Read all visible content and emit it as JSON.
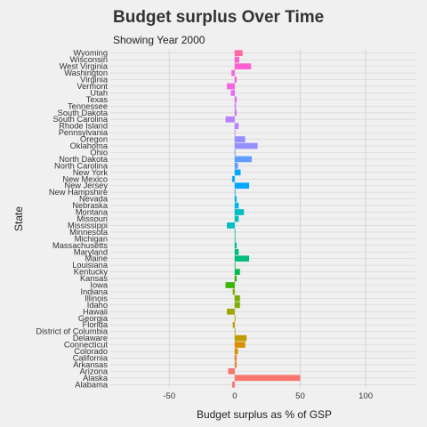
{
  "chart_data": {
    "type": "bar",
    "orientation": "horizontal",
    "title": "Budget surplus Over Time",
    "subtitle": "Showing Year 2000",
    "xlabel": "Budget surplus as % of GSP",
    "ylabel": "State",
    "xlim": [
      -95,
      138
    ],
    "xticks": [
      -50,
      0,
      50,
      100
    ],
    "xtick_labels": [
      "-50",
      "0",
      "50",
      "100"
    ],
    "grid": true,
    "legend": "none",
    "categories": [
      "Alabama",
      "Alaska",
      "Arizona",
      "Arkansas",
      "California",
      "Colorado",
      "Connecticut",
      "Delaware",
      "District of Columbia",
      "Florida",
      "Georgia",
      "Hawaii",
      "Idaho",
      "Illinois",
      "Indiana",
      "Iowa",
      "Kansas",
      "Kentucky",
      "Louisiana",
      "Maine",
      "Maryland",
      "Massachusetts",
      "Michigan",
      "Minnesota",
      "Mississippi",
      "Missouri",
      "Montana",
      "Nebraska",
      "Nevada",
      "New Hampshire",
      "New Jersey",
      "New Mexico",
      "New York",
      "North Carolina",
      "North Dakota",
      "Ohio",
      "Oklahoma",
      "Oregon",
      "Pennsylvania",
      "Rhode Island",
      "South Carolina",
      "South Dakota",
      "Tennessee",
      "Texas",
      "Utah",
      "Vermont",
      "Virginia",
      "Washington",
      "West Virginia",
      "Wisconsin",
      "Wyoming"
    ],
    "values": [
      -2,
      50,
      -5,
      1.5,
      1.5,
      2.5,
      8,
      9,
      0.5,
      -1.5,
      0.5,
      -6,
      4,
      4,
      -1.5,
      -7,
      1.5,
      4,
      0.5,
      11,
      3,
      1.5,
      0.5,
      0.5,
      -6,
      3,
      7,
      3,
      1.5,
      0.5,
      11,
      -2,
      4.5,
      2.5,
      13,
      0.5,
      17.5,
      8,
      0.5,
      3,
      -7,
      1.5,
      1,
      1.5,
      -3,
      -6,
      1.5,
      -2.5,
      12.5,
      3.5,
      6
    ],
    "colors": [
      "#f8766d",
      "#f8766d",
      "#f8766d",
      "#ea8331",
      "#ea8331",
      "#d89000",
      "#d89000",
      "#c09b00",
      "#c09b00",
      "#c09b00",
      "#a3a500",
      "#a3a500",
      "#7cae00",
      "#7cae00",
      "#7cae00",
      "#39b600",
      "#39b600",
      "#00bb4e",
      "#00bb4e",
      "#00bf7d",
      "#00bf7d",
      "#00c1a3",
      "#00c1a3",
      "#00c1a3",
      "#00bfc4",
      "#00bfc4",
      "#00bfc4",
      "#00b8e7",
      "#00b8e7",
      "#00a9ff",
      "#00a9ff",
      "#00a9ff",
      "#00a9ff",
      "#619cff",
      "#619cff",
      "#619cff",
      "#9590ff",
      "#9590ff",
      "#b983ff",
      "#b983ff",
      "#b983ff",
      "#d575fe",
      "#d575fe",
      "#e76bf3",
      "#e76bf3",
      "#f564e3",
      "#f564e3",
      "#f564e3",
      "#fd61d1",
      "#fd61d1",
      "#ff67a4"
    ]
  }
}
